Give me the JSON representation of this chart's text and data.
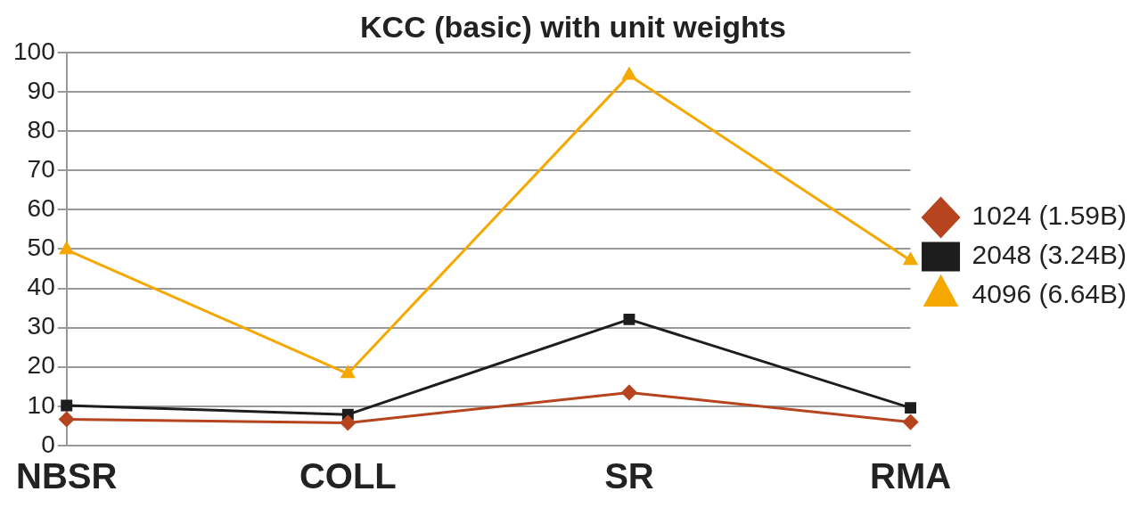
{
  "chart_data": {
    "type": "line",
    "title": "KCC (basic) with unit weights",
    "categories": [
      "NBSR",
      "COLL",
      "SR",
      "RMA"
    ],
    "series": [
      {
        "name": "1024 (1.59B)",
        "color": "#b5441f",
        "marker": "diamond",
        "values": [
          6.7,
          5.8,
          13.5,
          6.0
        ]
      },
      {
        "name": "2048 (3.24B)",
        "color": "#1d1d1d",
        "marker": "square",
        "values": [
          10.2,
          7.9,
          32.1,
          9.6
        ]
      },
      {
        "name": "4096 (6.64B)",
        "color": "#f5a800",
        "marker": "triangle",
        "values": [
          49.8,
          18.3,
          94.2,
          47.1
        ]
      }
    ],
    "ylim": [
      0,
      100
    ],
    "yticks": [
      0,
      10,
      20,
      30,
      40,
      50,
      60,
      70,
      80,
      90,
      100
    ],
    "grid": "y",
    "legend": "right",
    "line_style": "solid"
  }
}
